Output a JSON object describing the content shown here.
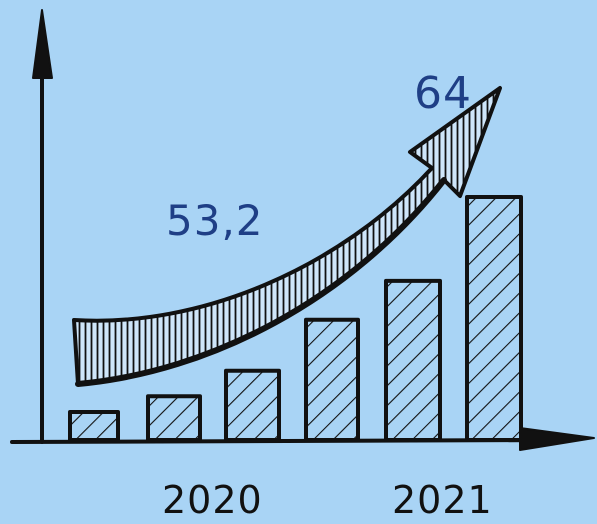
{
  "chart_data": {
    "type": "bar",
    "title": "",
    "xlabel": "",
    "ylabel": "",
    "tick_labels": [
      "2020",
      "2021"
    ],
    "bar_heights_relative": [
      0.115,
      0.18,
      0.285,
      0.495,
      0.655,
      1.0
    ],
    "annotations": [
      {
        "text": "53,2"
      },
      {
        "text": "64"
      }
    ],
    "colors": {
      "background": "#a9d4f5",
      "ink": "#111111",
      "annotation": "#1f3f86"
    },
    "trend_arrow": "upward curved arrow",
    "grid": false
  }
}
